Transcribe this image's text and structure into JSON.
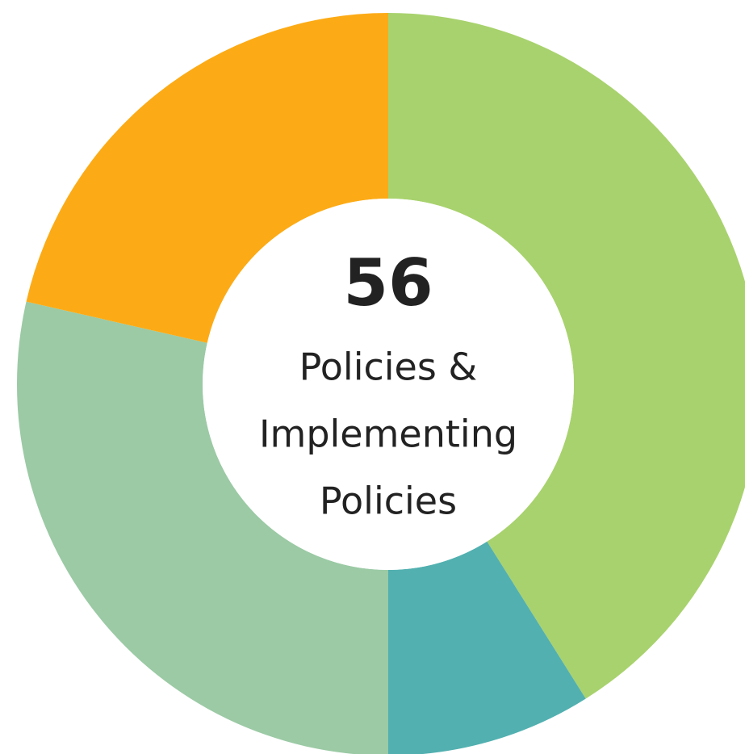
{
  "chart_data": {
    "type": "donut",
    "categories": [
      null,
      null,
      null,
      null
    ],
    "values": [
      23,
      5,
      16,
      12
    ],
    "colors": [
      "#a8d26d",
      "#52b0b0",
      "#9bcaa5",
      "#fcab16"
    ],
    "center_value": 56,
    "center_label": [
      "Policies &",
      "Implementing",
      "Policies"
    ]
  }
}
